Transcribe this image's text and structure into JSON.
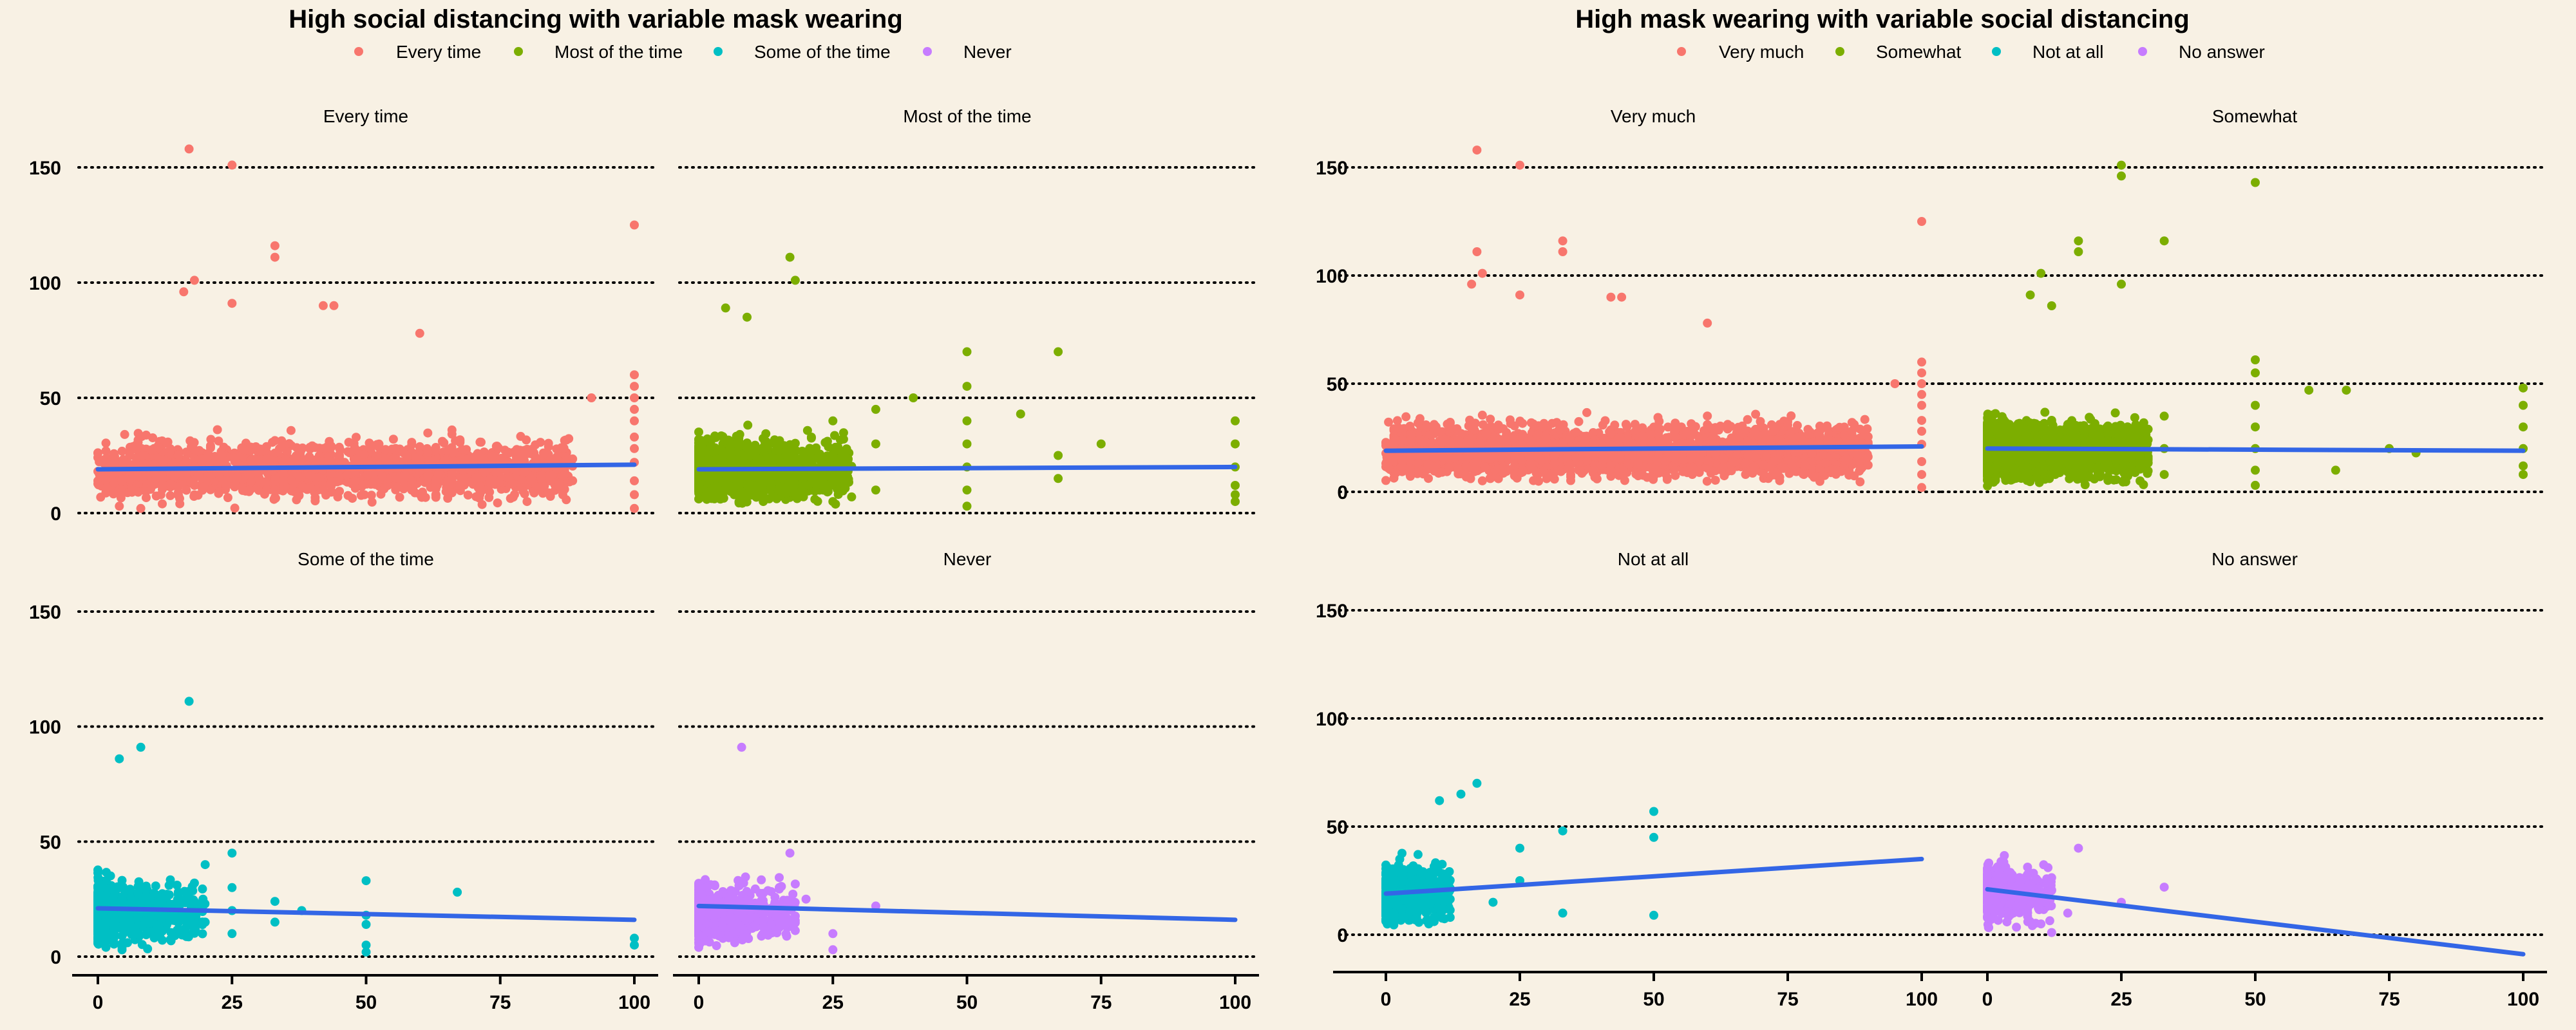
{
  "chart_data": [
    {
      "type": "scatter",
      "title": "High social distancing with variable mask wearing",
      "xlim": [
        0,
        100
      ],
      "ylim": [
        0,
        150
      ],
      "x_ticks": [
        0,
        25,
        50,
        75,
        100
      ],
      "y_ticks": [
        0,
        50,
        100,
        150
      ],
      "grid": "horizontal dotted",
      "legend_position": "top",
      "legend": [
        {
          "label": "Every time",
          "color": "#F8766D"
        },
        {
          "label": "Most of the time",
          "color": "#7CAE00"
        },
        {
          "label": "Some of the time",
          "color": "#00BFC4"
        },
        {
          "label": "Never",
          "color": "#C77CFF"
        }
      ],
      "panels": [
        {
          "label": "Every time",
          "color": "#F8766D",
          "trend": [
            [
              0,
              19
            ],
            [
              100,
              21
            ]
          ],
          "outliers": [
            [
              17,
              158
            ],
            [
              25,
              151
            ],
            [
              100,
              125
            ],
            [
              33,
              116
            ],
            [
              33,
              111
            ],
            [
              18,
              101
            ],
            [
              16,
              96
            ],
            [
              25,
              91
            ],
            [
              42,
              90
            ],
            [
              44,
              90
            ],
            [
              60,
              78
            ],
            [
              100,
              60
            ],
            [
              100,
              55
            ],
            [
              92,
              50
            ],
            [
              100,
              50
            ],
            [
              100,
              45
            ],
            [
              100,
              40
            ],
            [
              100,
              33
            ],
            [
              100,
              28
            ],
            [
              100,
              22
            ],
            [
              100,
              14
            ],
            [
              100,
              8
            ],
            [
              100,
              2
            ],
            [
              4,
              3
            ],
            [
              8,
              2
            ],
            [
              80,
              5
            ]
          ],
          "cloud": {
            "x_range": [
              0,
              88
            ],
            "y_range": [
              0,
              58
            ],
            "x_skew": 1.0,
            "count": 1800
          }
        },
        {
          "label": "Most of the time",
          "color": "#7CAE00",
          "trend": [
            [
              0,
              19
            ],
            [
              100,
              20
            ]
          ],
          "outliers": [
            [
              17,
              111
            ],
            [
              18,
              101
            ],
            [
              5,
              89
            ],
            [
              9,
              85
            ],
            [
              50,
              70
            ],
            [
              67,
              70
            ],
            [
              50,
              55
            ],
            [
              40,
              50
            ],
            [
              33,
              45
            ],
            [
              25,
              40
            ],
            [
              60,
              43
            ],
            [
              75,
              30
            ],
            [
              100,
              40
            ],
            [
              100,
              30
            ],
            [
              100,
              20
            ],
            [
              100,
              12
            ],
            [
              100,
              8
            ],
            [
              100,
              5
            ],
            [
              50,
              40
            ],
            [
              50,
              30
            ],
            [
              50,
              20
            ],
            [
              50,
              10
            ],
            [
              50,
              3
            ],
            [
              67,
              25
            ],
            [
              67,
              15
            ],
            [
              33,
              30
            ],
            [
              33,
              10
            ],
            [
              25,
              25
            ],
            [
              25,
              15
            ],
            [
              25,
              5
            ]
          ],
          "cloud": {
            "x_range": [
              0,
              28
            ],
            "y_range": [
              0,
              65
            ],
            "x_skew": 2.3,
            "count": 1700
          }
        },
        {
          "label": "Some of the time",
          "color": "#00BFC4",
          "trend": [
            [
              0,
              21
            ],
            [
              100,
              16
            ]
          ],
          "outliers": [
            [
              17,
              111
            ],
            [
              8,
              91
            ],
            [
              4,
              86
            ],
            [
              33,
              24
            ],
            [
              33,
              15
            ],
            [
              38,
              20
            ],
            [
              50,
              33
            ],
            [
              50,
              18
            ],
            [
              50,
              14
            ],
            [
              50,
              5
            ],
            [
              50,
              2
            ],
            [
              67,
              28
            ],
            [
              100,
              8
            ],
            [
              100,
              5
            ],
            [
              25,
              45
            ],
            [
              25,
              30
            ],
            [
              25,
              20
            ],
            [
              25,
              10
            ],
            [
              20,
              40
            ],
            [
              20,
              15
            ]
          ],
          "cloud": {
            "x_range": [
              0,
              20
            ],
            "y_range": [
              0,
              62
            ],
            "x_skew": 2.6,
            "count": 900
          }
        },
        {
          "label": "Never",
          "color": "#C77CFF",
          "trend": [
            [
              0,
              22
            ],
            [
              100,
              16
            ]
          ],
          "outliers": [
            [
              8,
              91
            ],
            [
              33,
              22
            ],
            [
              25,
              10
            ],
            [
              25,
              3
            ],
            [
              20,
              25
            ],
            [
              17,
              45
            ],
            [
              15,
              30
            ]
          ],
          "cloud": {
            "x_range": [
              0,
              18
            ],
            "y_range": [
              0,
              64
            ],
            "x_skew": 2.5,
            "count": 650
          }
        }
      ]
    },
    {
      "type": "scatter",
      "title": "High mask wearing with variable social distancing",
      "xlim": [
        0,
        100
      ],
      "ylim": [
        -8,
        150
      ],
      "x_ticks": [
        0,
        25,
        50,
        75,
        100
      ],
      "y_ticks": [
        0,
        50,
        100,
        150
      ],
      "grid": "horizontal dotted",
      "legend_position": "top",
      "legend": [
        {
          "label": "Very much",
          "color": "#F8766D"
        },
        {
          "label": "Somewhat",
          "color": "#7CAE00"
        },
        {
          "label": "Not at all",
          "color": "#00BFC4"
        },
        {
          "label": "No answer",
          "color": "#C77CFF"
        }
      ],
      "panels": [
        {
          "label": "Very much",
          "color": "#F8766D",
          "trend": [
            [
              0,
              19
            ],
            [
              100,
              21
            ]
          ],
          "outliers": [
            [
              17,
              158
            ],
            [
              25,
              151
            ],
            [
              100,
              125
            ],
            [
              33,
              116
            ],
            [
              33,
              111
            ],
            [
              17,
              111
            ],
            [
              18,
              101
            ],
            [
              16,
              96
            ],
            [
              25,
              91
            ],
            [
              42,
              90
            ],
            [
              44,
              90
            ],
            [
              60,
              78
            ],
            [
              100,
              60
            ],
            [
              100,
              55
            ],
            [
              95,
              50
            ],
            [
              100,
              50
            ],
            [
              100,
              45
            ],
            [
              100,
              40
            ],
            [
              100,
              33
            ],
            [
              100,
              28
            ],
            [
              100,
              22
            ],
            [
              100,
              14
            ],
            [
              100,
              8
            ],
            [
              100,
              2
            ]
          ],
          "cloud": {
            "x_range": [
              0,
              90
            ],
            "y_range": [
              0,
              60
            ],
            "x_skew": 1.0,
            "count": 2600
          }
        },
        {
          "label": "Somewhat",
          "color": "#7CAE00",
          "trend": [
            [
              0,
              20
            ],
            [
              100,
              19
            ]
          ],
          "outliers": [
            [
              25,
              151
            ],
            [
              25,
              146
            ],
            [
              50,
              143
            ],
            [
              17,
              116
            ],
            [
              33,
              116
            ],
            [
              17,
              111
            ],
            [
              10,
              101
            ],
            [
              8,
              91
            ],
            [
              12,
              86
            ],
            [
              25,
              96
            ],
            [
              50,
              61
            ],
            [
              50,
              55
            ],
            [
              67,
              47
            ],
            [
              60,
              47
            ],
            [
              75,
              20
            ],
            [
              80,
              18
            ],
            [
              100,
              48
            ],
            [
              100,
              40
            ],
            [
              100,
              30
            ],
            [
              100,
              20
            ],
            [
              100,
              12
            ],
            [
              100,
              8
            ],
            [
              50,
              40
            ],
            [
              50,
              30
            ],
            [
              50,
              20
            ],
            [
              50,
              10
            ],
            [
              50,
              3
            ],
            [
              33,
              35
            ],
            [
              33,
              20
            ],
            [
              33,
              8
            ],
            [
              25,
              30
            ],
            [
              25,
              15
            ],
            [
              65,
              10
            ]
          ],
          "cloud": {
            "x_range": [
              0,
              30
            ],
            "y_range": [
              0,
              66
            ],
            "x_skew": 2.0,
            "count": 2400
          }
        },
        {
          "label": "Not at all",
          "color": "#00BFC4",
          "trend": [
            [
              0,
              19
            ],
            [
              100,
              35
            ]
          ],
          "outliers": [
            [
              17,
              70
            ],
            [
              14,
              65
            ],
            [
              10,
              62
            ],
            [
              50,
              57
            ],
            [
              50,
              45
            ],
            [
              33,
              48
            ],
            [
              33,
              10
            ],
            [
              25,
              40
            ],
            [
              25,
              25
            ],
            [
              20,
              15
            ],
            [
              50,
              9
            ],
            [
              12,
              8
            ],
            [
              8,
              5
            ]
          ],
          "cloud": {
            "x_range": [
              0,
              12
            ],
            "y_range": [
              0,
              66
            ],
            "x_skew": 2.4,
            "count": 700
          }
        },
        {
          "label": "No answer",
          "color": "#C77CFF",
          "trend": [
            [
              0,
              21
            ],
            [
              100,
              -9
            ]
          ],
          "outliers": [
            [
              33,
              22
            ],
            [
              25,
              15
            ],
            [
              17,
              40
            ],
            [
              12,
              1
            ],
            [
              10,
              5
            ],
            [
              15,
              10
            ]
          ],
          "cloud": {
            "x_range": [
              0,
              12
            ],
            "y_range": [
              0,
              62
            ],
            "x_skew": 2.6,
            "count": 500
          }
        }
      ]
    }
  ]
}
